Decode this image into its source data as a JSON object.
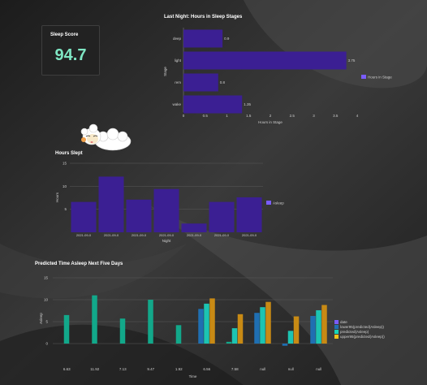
{
  "theme": {
    "bar": "#3b1f93",
    "teal": "#12a88a",
    "blue": "#1f6fb2",
    "cyan": "#1cc4b2",
    "orange": "#c88a14",
    "legend_date": "#7a5cff",
    "legend_lower": "#1f6fb2",
    "legend_pred": "#17d6b9",
    "legend_upper": "#f0c419"
  },
  "score": {
    "title": "Sleep Score",
    "value": "94.7"
  },
  "stages": {
    "title": "Last Night: Hours in Sleep Stages",
    "legend": "Hours in Stage",
    "chart_data": {
      "type": "bar",
      "orientation": "horizontal",
      "categories": [
        "deep",
        "light",
        "rem",
        "wake"
      ],
      "values": [
        0.9,
        3.75,
        0.8,
        1.35
      ],
      "value_labels": [
        "0.9",
        "3.75",
        "0.8",
        "1.35"
      ],
      "ylabel": "Stage",
      "xlabel": "Hours in Stage",
      "xticks": [
        "0",
        "0.5",
        "1",
        "1.5",
        "2",
        "2.5",
        "3",
        "3.5",
        "4"
      ],
      "xlim": [
        0,
        4
      ]
    }
  },
  "hours": {
    "title": "Hours Slept",
    "legend": "Asleep",
    "chart_data": {
      "type": "bar",
      "categories": [
        "2021-09-05",
        "2021-09-06",
        "2021-09-07",
        "2021-09-08",
        "2021-09-09",
        "2021-09-10",
        "2021-09-11"
      ],
      "tick_labels": [
        "2021-09-0",
        "2021-09-0",
        "2021-09-0",
        "2021-09-0",
        "2021-09-0",
        "2021-09-0",
        "2021-09-0"
      ],
      "values": [
        6.6,
        12.1,
        7.1,
        9.4,
        1.9,
        6.6,
        7.6
      ],
      "ylim": [
        0,
        15
      ],
      "yticks": [
        "15",
        "10",
        "5"
      ],
      "ylabel": "Hours",
      "xlabel": "Night"
    }
  },
  "predicted": {
    "title": "Predicted Time Asleep Next Five Days",
    "chart_data": {
      "type": "bar",
      "categories": [
        "6.63",
        "11.92",
        "7.13",
        "9.47",
        "1.92",
        "6.56",
        "7.58",
        "null",
        "null",
        "null"
      ],
      "series": [
        {
          "name": "date",
          "values": [
            6.5,
            11.0,
            5.7,
            10.0,
            4.2,
            0,
            0.4,
            0,
            0,
            0
          ]
        },
        {
          "name": "lower95(predicted(Asleep))",
          "values": [
            0,
            0,
            0,
            0,
            0,
            7.9,
            0,
            7.0,
            -0.5,
            6.3
          ]
        },
        {
          "name": "predicted(Asleep)",
          "values": [
            0,
            0,
            0,
            0,
            0,
            9.1,
            3.5,
            8.3,
            2.9,
            7.6
          ]
        },
        {
          "name": "upper95(predicted(Asleep))",
          "values": [
            0,
            0,
            0,
            0,
            0,
            10.3,
            6.7,
            9.5,
            6.2,
            8.8
          ]
        }
      ],
      "ylim": [
        0,
        15
      ],
      "yticks": [
        "15",
        "10",
        "5",
        "0"
      ],
      "ylabel": "Asleep",
      "xlabel": "Time"
    }
  }
}
